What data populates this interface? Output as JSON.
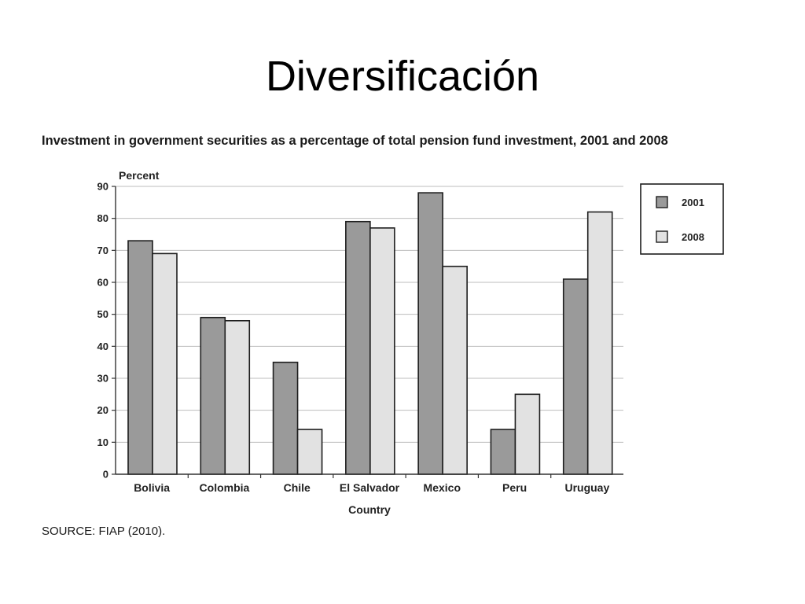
{
  "slide": {
    "title": "Diversificación"
  },
  "source_note": "SOURCE: FIAP (2010).",
  "colors": {
    "series_2001": "#9a9a9a",
    "series_2008": "#e2e2e2",
    "grid": "#bdbdbd",
    "axis": "#333333"
  },
  "chart_data": {
    "type": "bar",
    "title": "Investment in government securities as a percentage of total pension fund investment, 2001 and 2008",
    "ylabel": "Percent",
    "xlabel": "Country",
    "ylim": [
      0,
      90
    ],
    "yticks": [
      0,
      10,
      20,
      30,
      40,
      50,
      60,
      70,
      80,
      90
    ],
    "grid": true,
    "legend_position": "top-right",
    "categories": [
      "Bolivia",
      "Colombia",
      "Chile",
      "El Salvador",
      "Mexico",
      "Peru",
      "Uruguay"
    ],
    "series": [
      {
        "name": "2001",
        "values": [
          73,
          49,
          35,
          79,
          88,
          14,
          61
        ]
      },
      {
        "name": "2008",
        "values": [
          69,
          48,
          14,
          77,
          65,
          25,
          82
        ]
      }
    ]
  }
}
